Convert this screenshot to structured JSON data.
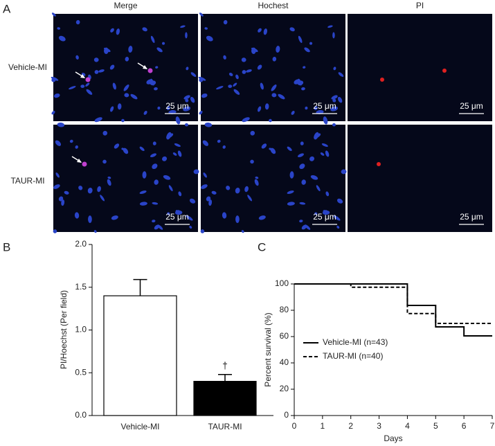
{
  "panels": {
    "a": "A",
    "b": "B",
    "c": "C"
  },
  "image_grid": {
    "columns": [
      "Merge",
      "Hochest",
      "PI"
    ],
    "rows": [
      "Vehicle-MI",
      "TAUR-MI"
    ],
    "scale_bar": "25 μm"
  },
  "chart_data": [
    {
      "type": "bar",
      "y_label": "PI/Hoechst (Per field)",
      "categories": [
        "Vehicle-MI",
        "TAUR-MI"
      ],
      "values": [
        1.4,
        0.4
      ],
      "errors": [
        0.19,
        0.08
      ],
      "colors": [
        "#ffffff",
        "#000000"
      ],
      "annotation": "†",
      "ylim": [
        0,
        2
      ],
      "yticks": [
        {
          "value": 0,
          "label": "0.0"
        },
        {
          "value": 0.5,
          "label": "0.5"
        },
        {
          "value": 1,
          "label": "1.0"
        },
        {
          "value": 1.5,
          "label": "1.5"
        },
        {
          "value": 2,
          "label": "2.0"
        }
      ]
    },
    {
      "type": "line",
      "step": true,
      "x_label": "Days",
      "y_label": "Percent survival (%)",
      "x": [
        0,
        2,
        4,
        5,
        6,
        7
      ],
      "series": [
        {
          "name": "Vehicle-MI (n=43)",
          "color": "#000000",
          "dashed": false,
          "values": [
            100,
            100,
            83.7,
            67.4,
            60.5,
            60.5
          ]
        },
        {
          "name": "TAUR-MI (n=40)",
          "color": "#000000",
          "dashed": true,
          "values": [
            100,
            97.5,
            77.5,
            70,
            70,
            70
          ]
        }
      ],
      "xlim": [
        0,
        7
      ],
      "xticks": [
        0,
        1,
        2,
        3,
        4,
        5,
        6,
        7
      ],
      "ylim": [
        0,
        100
      ],
      "yticks": [
        0,
        20,
        40,
        60,
        80,
        100
      ]
    }
  ]
}
